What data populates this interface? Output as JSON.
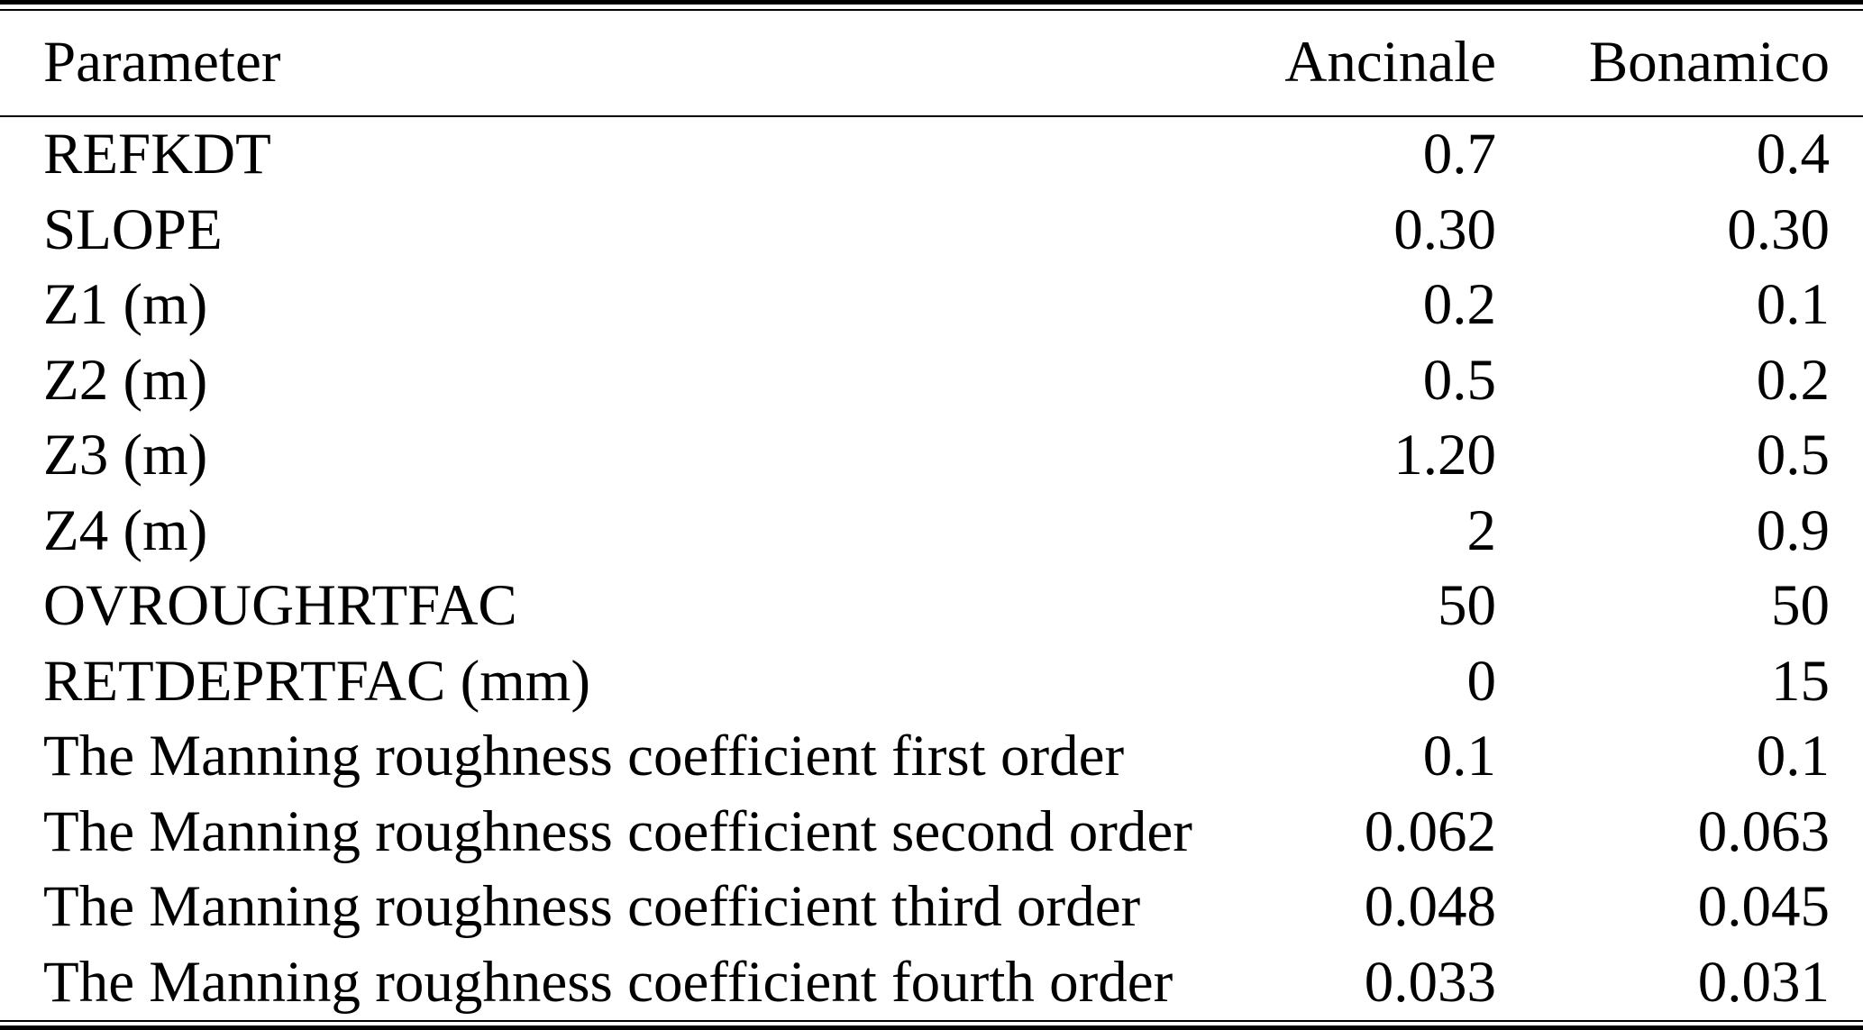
{
  "colors": {
    "text": "#000000",
    "background": "#ffffff",
    "rule": "#000000"
  },
  "table": {
    "columns": {
      "parameter": "Parameter",
      "ancinale": "Ancinale",
      "bonamico": "Bonamico"
    },
    "rows": [
      {
        "parameter": "REFKDT",
        "ancinale": "0.7",
        "bonamico": "0.4"
      },
      {
        "parameter": "SLOPE",
        "ancinale": "0.30",
        "bonamico": "0.30"
      },
      {
        "parameter": "Z1 (m)",
        "ancinale": "0.2",
        "bonamico": "0.1"
      },
      {
        "parameter": "Z2 (m)",
        "ancinale": "0.5",
        "bonamico": "0.2"
      },
      {
        "parameter": "Z3 (m)",
        "ancinale": "1.20",
        "bonamico": "0.5"
      },
      {
        "parameter": "Z4 (m)",
        "ancinale": "2",
        "bonamico": "0.9"
      },
      {
        "parameter": "OVROUGHRTFAC",
        "ancinale": "50",
        "bonamico": "50"
      },
      {
        "parameter": "RETDEPRTFAC (mm)",
        "ancinale": "0",
        "bonamico": "15"
      },
      {
        "parameter": "The Manning roughness coefficient first order",
        "ancinale": "0.1",
        "bonamico": "0.1"
      },
      {
        "parameter": "The Manning roughness coefficient second order",
        "ancinale": "0.062",
        "bonamico": "0.063"
      },
      {
        "parameter": "The Manning roughness coefficient third order",
        "ancinale": "0.048",
        "bonamico": "0.045"
      },
      {
        "parameter": "The Manning roughness coefficient fourth order",
        "ancinale": "0.033",
        "bonamico": "0.031"
      }
    ]
  },
  "chart_data": {
    "type": "table",
    "columns": [
      "Parameter",
      "Ancinale",
      "Bonamico"
    ],
    "rows": [
      [
        "REFKDT",
        "0.7",
        "0.4"
      ],
      [
        "SLOPE",
        "0.30",
        "0.30"
      ],
      [
        "Z1 (m)",
        "0.2",
        "0.1"
      ],
      [
        "Z2 (m)",
        "0.5",
        "0.2"
      ],
      [
        "Z3 (m)",
        "1.20",
        "0.5"
      ],
      [
        "Z4 (m)",
        "2",
        "0.9"
      ],
      [
        "OVROUGHRTFAC",
        "50",
        "50"
      ],
      [
        "RETDEPRTFAC (mm)",
        "0",
        "15"
      ],
      [
        "The Manning roughness coefficient first order",
        "0.1",
        "0.1"
      ],
      [
        "The Manning roughness coefficient second order",
        "0.062",
        "0.063"
      ],
      [
        "The Manning roughness coefficient third order",
        "0.048",
        "0.045"
      ],
      [
        "The Manning roughness coefficient fourth order",
        "0.033",
        "0.031"
      ]
    ]
  }
}
